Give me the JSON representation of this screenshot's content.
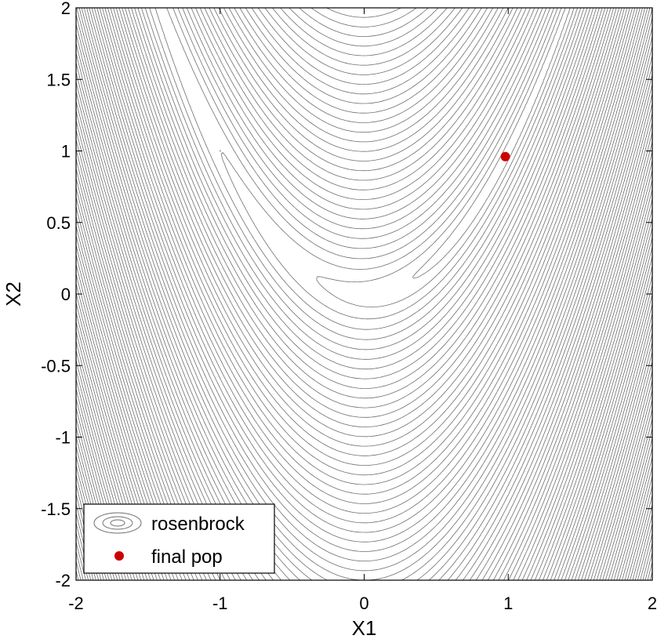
{
  "chart_data": {
    "type": "contour",
    "function": "rosenbrock",
    "xlabel": "X1",
    "ylabel": "X2",
    "xlim": [
      -2,
      2
    ],
    "ylim": [
      -2,
      2
    ],
    "xticks": [
      "-2",
      "-1",
      "0",
      "1",
      "2"
    ],
    "yticks": [
      "-2",
      "-1.5",
      "-1",
      "-0.5",
      "0",
      "0.5",
      "1",
      "1.5",
      "2"
    ],
    "contour_color": "#6e6e6e",
    "point_color": "#cc0000",
    "grid": false,
    "legend_position": "bottom-left",
    "series": [
      {
        "name": "rosenbrock",
        "kind": "contour"
      },
      {
        "name": "final pop",
        "kind": "scatter",
        "points": [
          [
            0.98,
            0.96
          ]
        ]
      }
    ]
  }
}
